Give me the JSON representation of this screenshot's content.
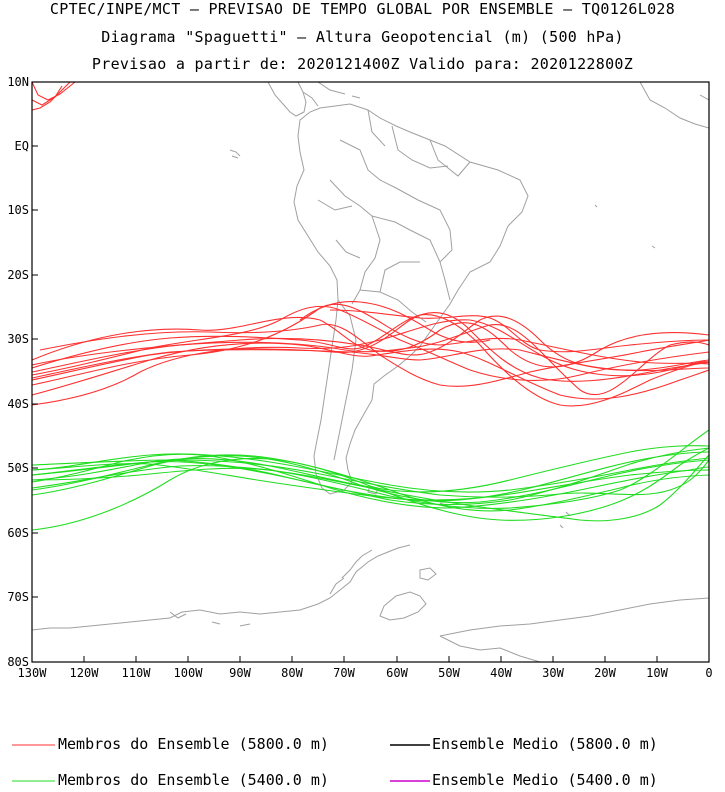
{
  "header": {
    "line1": "CPTEC/INPE/MCT — PREVISAO DE TEMPO GLOBAL POR ENSEMBLE — TQ0126L028",
    "line2": "Diagrama \"Spaguetti\" — Altura Geopotencial (m) (500 hPa)",
    "line3": "Previsao a partir de: 2020121400Z  Valido para: 2020122800Z"
  },
  "map": {
    "lat_labels": [
      "10N",
      "EQ",
      "10S",
      "20S",
      "30S",
      "40S",
      "50S",
      "60S",
      "70S",
      "80S"
    ],
    "lon_labels": [
      "130W",
      "120W",
      "110W",
      "100W",
      "90W",
      "80W",
      "70W",
      "60W",
      "50W",
      "40W",
      "30W",
      "20W",
      "10W",
      "0"
    ]
  },
  "legend": {
    "red_members": "Membros do Ensemble (5800.0 m)",
    "black_mean": "Ensemble Medio (5800.0 m)",
    "green_members": "Membros do Ensemble (5400.0 m)",
    "magenta_mean": "Ensemble Medio (5400.0 m)"
  },
  "colors": {
    "red": "#ff3030",
    "green": "#20dd20",
    "black": "#000000",
    "magenta": "#cc00cc",
    "coast": "#a0a0a0"
  }
}
